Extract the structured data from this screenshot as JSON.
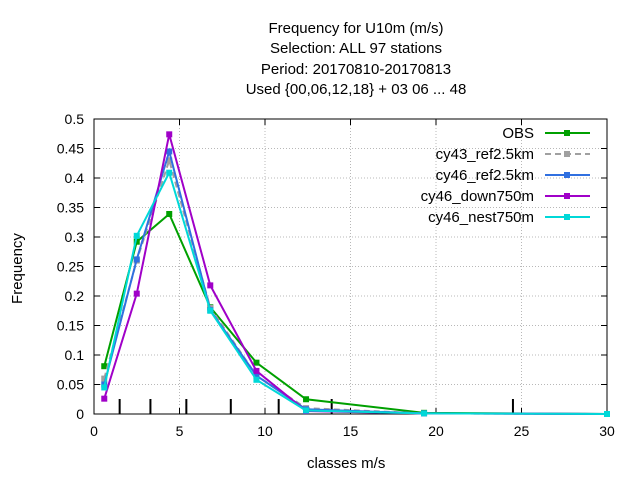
{
  "chart_data": {
    "type": "line",
    "title_lines": [
      "Frequency  for U10m (m/s)",
      "Selection: ALL      97 stations",
      "Period: 20170810-20170813",
      "Used {00,06,12,18} + 03 06 ... 48"
    ],
    "xlabel": "classes m/s",
    "ylabel": "Frequency",
    "xlim": [
      0,
      30
    ],
    "ylim": [
      0,
      0.5
    ],
    "x_ticks": [
      0,
      5,
      10,
      15,
      20,
      25,
      30
    ],
    "x_tick_labels": [
      "0",
      "5",
      "10",
      "15",
      "20",
      "25",
      "30"
    ],
    "y_ticks": [
      0,
      0.05,
      0.1,
      0.15,
      0.2,
      0.25,
      0.3,
      0.35,
      0.4,
      0.45,
      0.5
    ],
    "y_tick_labels": [
      "0",
      "0.05",
      "0.1",
      "0.15",
      "0.2",
      "0.25",
      "0.3",
      "0.35",
      "0.4",
      "0.45",
      "0.5"
    ],
    "class_bounds": [
      1.5,
      3.3,
      5.4,
      8.0,
      10.8,
      13.9,
      24.5
    ],
    "grid": true,
    "legend_position": "top-right",
    "series": [
      {
        "name": "OBS",
        "color": "#00a000",
        "dashed": false,
        "x": [
          0.6,
          2.5,
          4.4,
          6.8,
          9.5,
          12.4,
          19.3,
          30.0
        ],
        "y": [
          0.081,
          0.292,
          0.339,
          0.181,
          0.087,
          0.025,
          0.002,
          0.0
        ]
      },
      {
        "name": "cy43_ref2.5km",
        "color": "#a0a0a0",
        "dashed": true,
        "x": [
          0.6,
          2.5,
          4.4,
          6.8,
          9.5,
          12.4,
          19.3,
          30.0
        ],
        "y": [
          0.06,
          0.26,
          0.43,
          0.18,
          0.065,
          0.01,
          0.001,
          0.0
        ]
      },
      {
        "name": "cy46_ref2.5km",
        "color": "#3070e0",
        "dashed": false,
        "x": [
          0.6,
          2.5,
          4.4,
          6.8,
          9.5,
          12.4,
          19.3,
          30.0
        ],
        "y": [
          0.05,
          0.262,
          0.445,
          0.176,
          0.065,
          0.008,
          0.001,
          0.0
        ]
      },
      {
        "name": "cy46_down750m",
        "color": "#a000c8",
        "dashed": false,
        "x": [
          0.6,
          2.5,
          4.4,
          6.8,
          9.5,
          12.4,
          19.3,
          30.0
        ],
        "y": [
          0.026,
          0.204,
          0.474,
          0.218,
          0.073,
          0.005,
          0.001,
          0.0
        ]
      },
      {
        "name": "cy46_nest750m",
        "color": "#00d8d8",
        "dashed": false,
        "x": [
          0.6,
          2.5,
          4.4,
          6.8,
          9.5,
          12.4,
          19.3,
          30.0
        ],
        "y": [
          0.045,
          0.302,
          0.409,
          0.175,
          0.058,
          0.006,
          0.001,
          0.0
        ]
      }
    ]
  }
}
